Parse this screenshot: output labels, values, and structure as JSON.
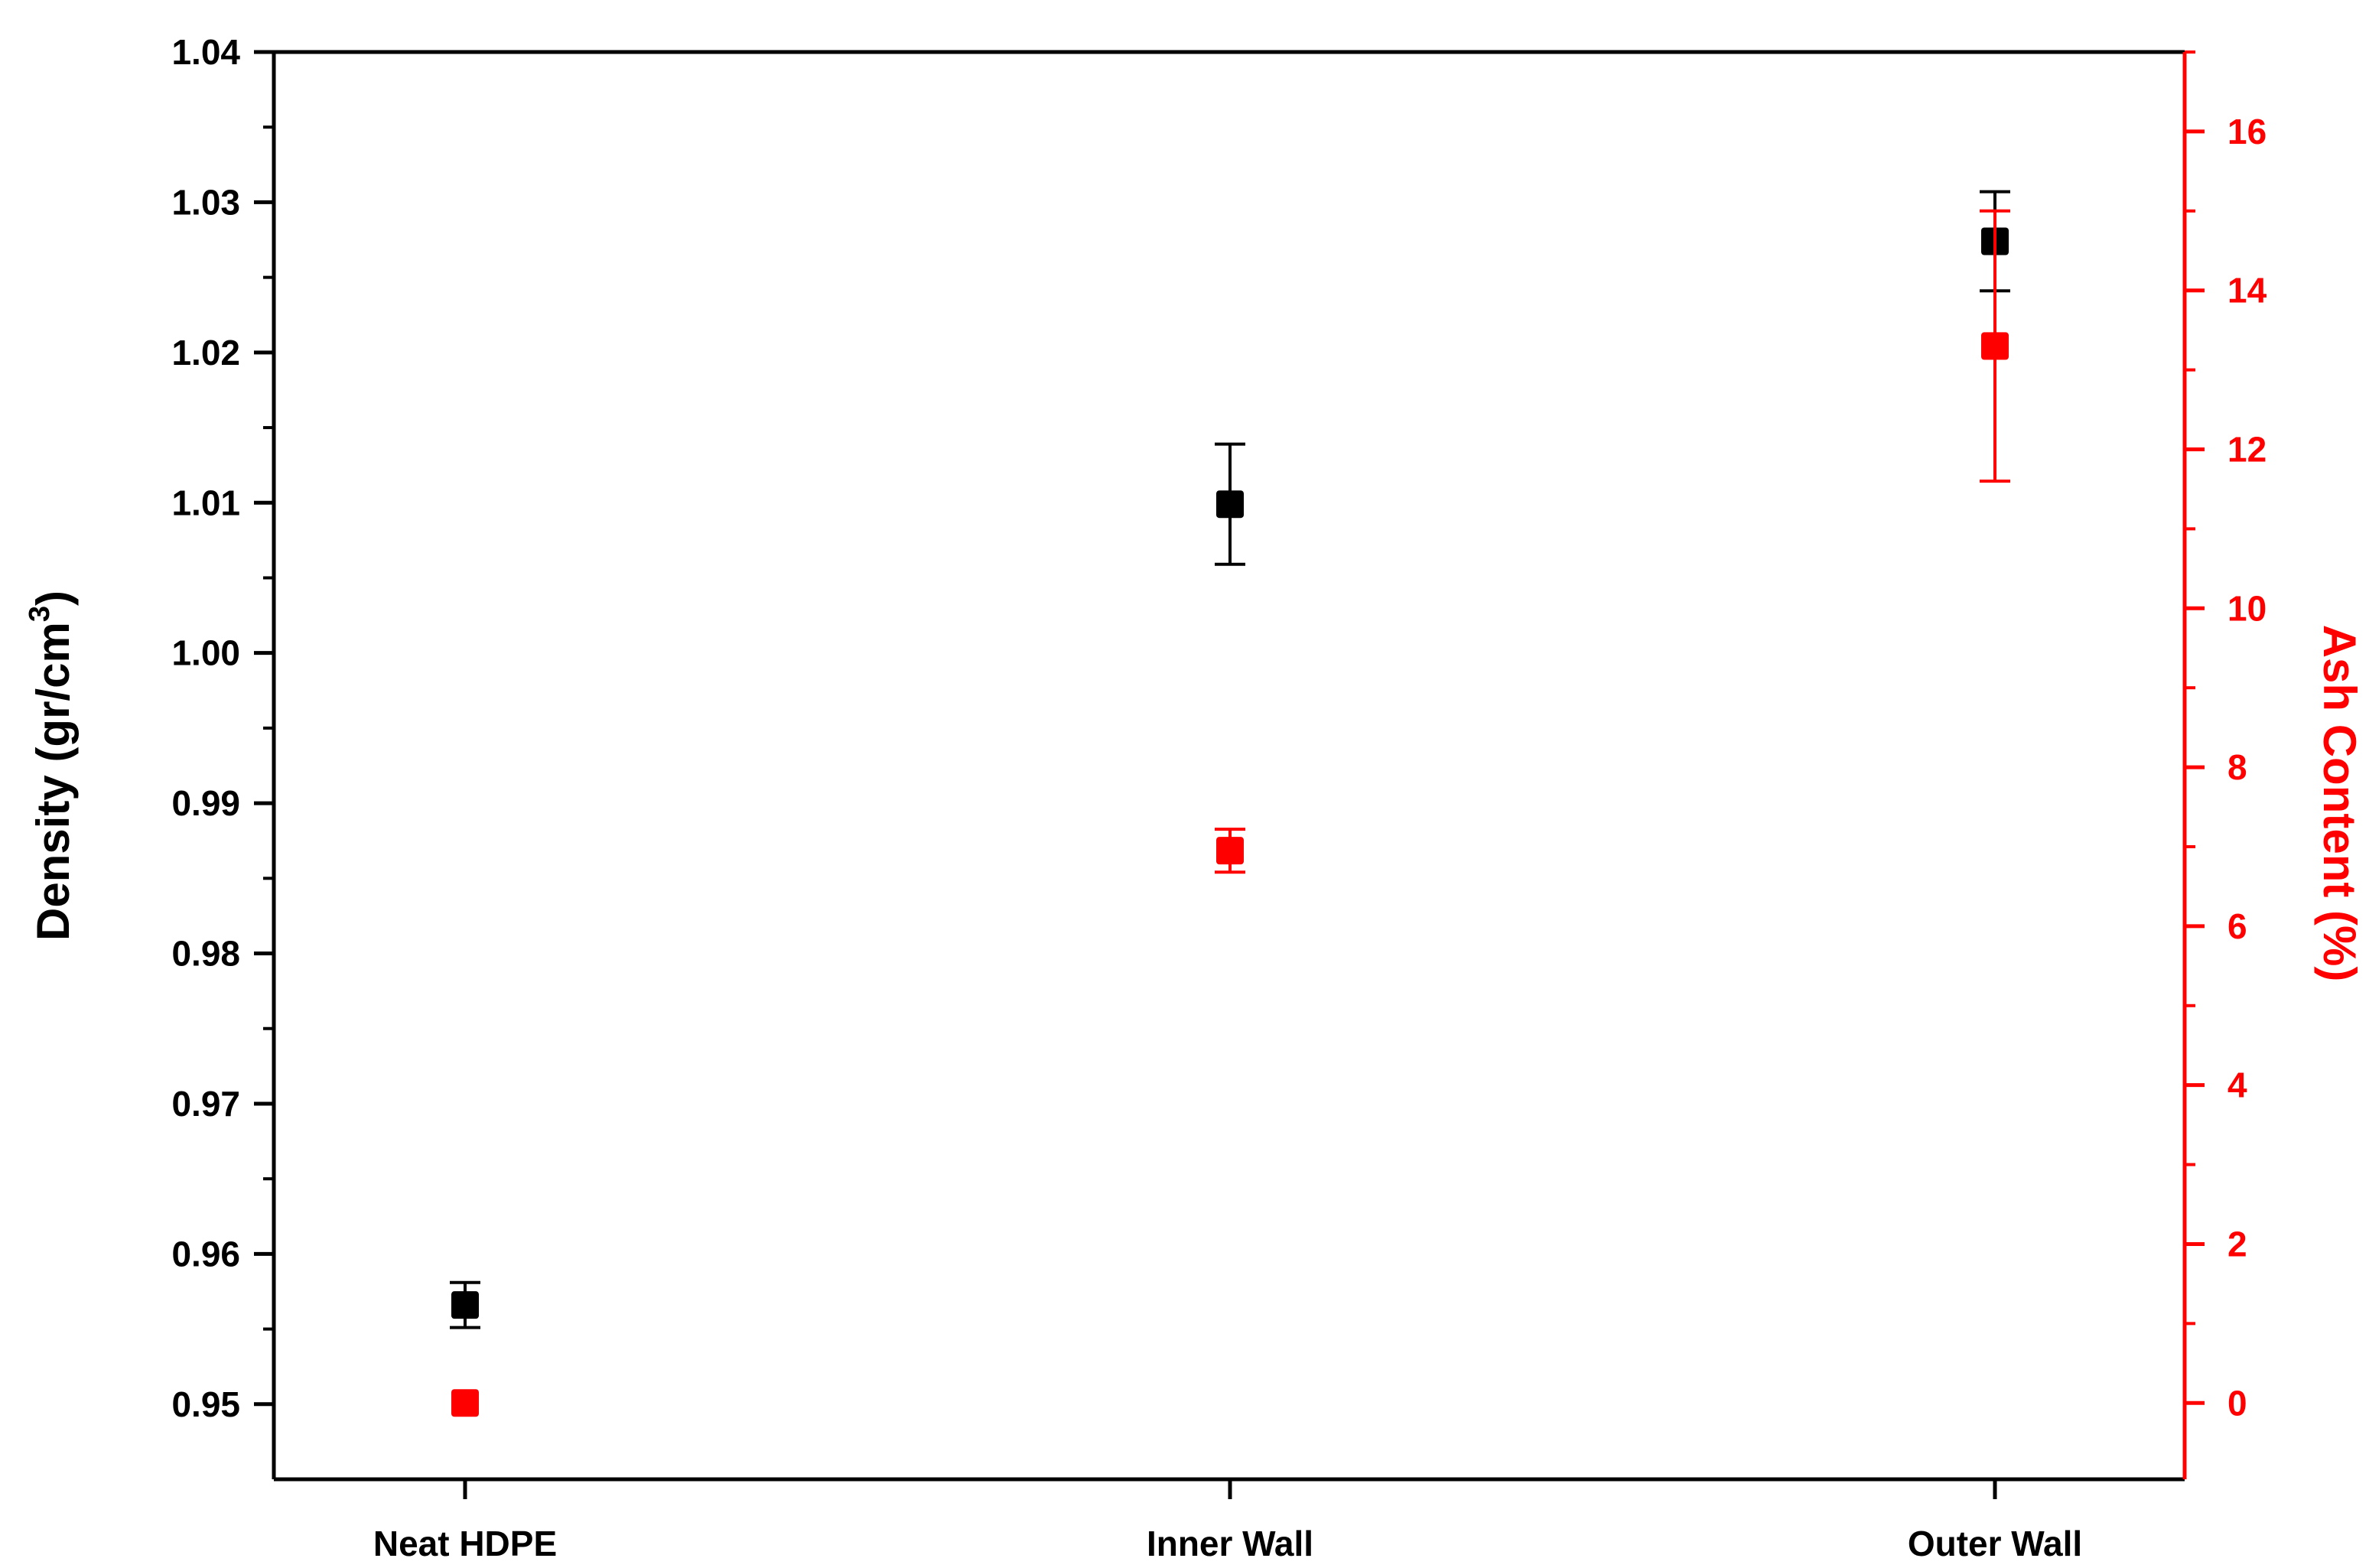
{
  "chart_data": {
    "type": "scatter",
    "title": "",
    "categories": [
      "Neat HDPE",
      "Inner Wall",
      "Outer Wall"
    ],
    "left_axis": {
      "label_main": "Density (gr/cm",
      "label_sup": "3",
      "label_close": ")",
      "range": [
        0.945,
        1.04
      ],
      "ticks": [
        "0.95",
        "0.96",
        "0.97",
        "0.98",
        "0.99",
        "1.00",
        "1.01",
        "1.02",
        "1.03",
        "1.04"
      ],
      "color": "#000000"
    },
    "right_axis": {
      "label": "Ash Content (%)",
      "range": [
        -0.96,
        17.0
      ],
      "ticks": [
        "0",
        "2",
        "4",
        "6",
        "8",
        "10",
        "12",
        "14",
        "16"
      ],
      "color": "#ff0000"
    },
    "series": [
      {
        "axis": "left",
        "color": "#000000",
        "values": [
          0.9566,
          1.0099,
          1.0274
        ],
        "errors": [
          0.0015,
          0.004,
          0.0033
        ]
      },
      {
        "axis": "right",
        "color": "#ff0000",
        "values": [
          0.0,
          6.95,
          13.3
        ],
        "errors": [
          0.0,
          0.27,
          1.7
        ]
      }
    ],
    "grid": false,
    "legend": "none"
  }
}
